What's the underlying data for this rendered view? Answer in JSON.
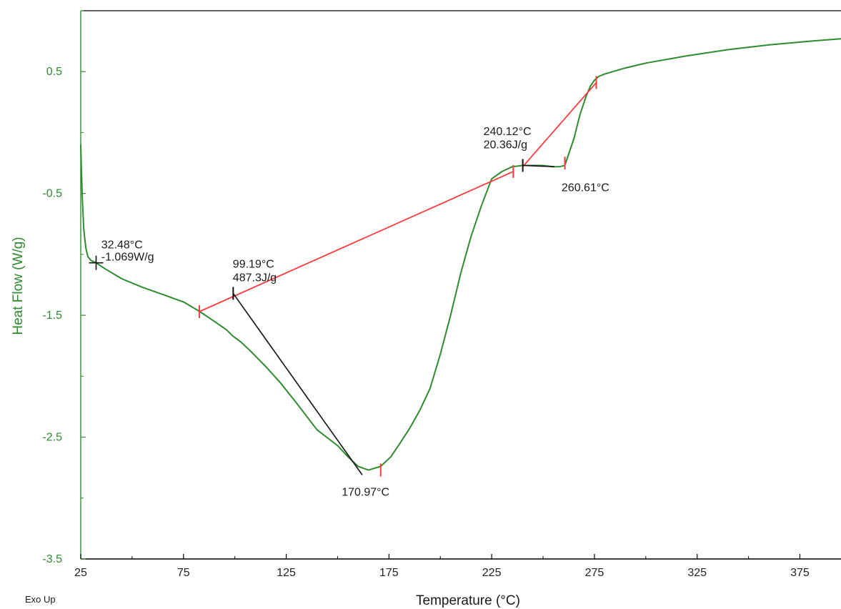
{
  "colors": {
    "curve": "#2e8b2e",
    "baseline": "#ff3b3b",
    "marker_black": "#111111",
    "axis_y": "#2e8b2e",
    "frame": "#000000"
  },
  "labels": {
    "exo_up": "Exo Up"
  },
  "chart_data": {
    "type": "line",
    "xlabel": "Temperature (°C)",
    "ylabel": "Heat Flow (W/g)",
    "xlim": [
      25,
      395
    ],
    "ylim": [
      -3.5,
      1.0
    ],
    "xticks": [
      25,
      75,
      125,
      175,
      225,
      275,
      325,
      375
    ],
    "yticks": [
      0.5,
      -0.5,
      -1.5,
      -2.5,
      -3.5
    ],
    "xtick_labels": [
      "25",
      "75",
      "125",
      "175",
      "225",
      "275",
      "325",
      "375"
    ],
    "ytick_labels": [
      "0.5",
      "-0.5",
      "-1.5",
      "-2.5",
      "-3.5"
    ],
    "grid": false,
    "series": [
      {
        "x": [
          25,
          25.3,
          25.8,
          26.5,
          27.5,
          28.5,
          30,
          32.5,
          37,
          45,
          55,
          65,
          75,
          83,
          90,
          96,
          99,
          103,
          108,
          115,
          122,
          130,
          140,
          150,
          155,
          160,
          165,
          171,
          176,
          180,
          185,
          190,
          192.5,
          195,
          200,
          205,
          210,
          215,
          220,
          225,
          230,
          235,
          240,
          245,
          250,
          255,
          258,
          260.6,
          262,
          265,
          268,
          271,
          273,
          275,
          277,
          280,
          290,
          300,
          320,
          340,
          360,
          380,
          395
        ],
        "y": [
          -0.1,
          -0.3,
          -0.55,
          -0.8,
          -0.95,
          -1.02,
          -1.05,
          -1.07,
          -1.12,
          -1.2,
          -1.27,
          -1.33,
          -1.39,
          -1.47,
          -1.55,
          -1.62,
          -1.67,
          -1.72,
          -1.8,
          -1.92,
          -2.05,
          -2.22,
          -2.44,
          -2.57,
          -2.66,
          -2.74,
          -2.77,
          -2.74,
          -2.66,
          -2.56,
          -2.43,
          -2.28,
          -2.19,
          -2.1,
          -1.82,
          -1.5,
          -1.15,
          -0.85,
          -0.6,
          -0.38,
          -0.32,
          -0.28,
          -0.27,
          -0.27,
          -0.27,
          -0.28,
          -0.28,
          -0.27,
          -0.2,
          -0.05,
          0.15,
          0.3,
          0.38,
          0.43,
          0.46,
          0.48,
          0.53,
          0.57,
          0.63,
          0.68,
          0.72,
          0.75,
          0.77
        ]
      }
    ],
    "baselines": [
      {
        "x": [
          82.7,
          235.5
        ],
        "y": [
          -1.47,
          -0.32
        ]
      },
      {
        "x": [
          240.12,
          275.9
        ],
        "y": [
          -0.28,
          0.41
        ]
      }
    ],
    "tangents": [
      {
        "x": [
          99.19,
          162.0
        ],
        "y": [
          -1.32,
          -2.81
        ]
      },
      {
        "x": [
          240.12,
          255.5
        ],
        "y": [
          -0.27,
          -0.28
        ]
      }
    ],
    "tick_marks": [
      {
        "x": 82.7,
        "y": -1.47,
        "color": "red"
      },
      {
        "x": 99.19,
        "y": -1.32,
        "color": "black"
      },
      {
        "x": 170.97,
        "y": -2.77,
        "color": "red"
      },
      {
        "x": 235.5,
        "y": -0.32,
        "color": "red"
      },
      {
        "x": 240.12,
        "y": -0.27,
        "color": "black"
      },
      {
        "x": 260.61,
        "y": -0.25,
        "color": "red"
      },
      {
        "x": 275.9,
        "y": 0.41,
        "color": "red"
      }
    ],
    "cross_marks": [
      {
        "x": 32.48,
        "y": -1.069
      }
    ],
    "annotations": [
      {
        "text": "32.48°C",
        "x": 35,
        "y": -0.95
      },
      {
        "text": "-1.069W/g",
        "x": 35,
        "y": -1.05
      },
      {
        "text": "99.19°C",
        "x": 99,
        "y": -1.11
      },
      {
        "text": "487.3J/g",
        "x": 99,
        "y": -1.22
      },
      {
        "text": "170.97°C",
        "x": 152,
        "y": -2.98
      },
      {
        "text": "240.12°C",
        "x": 221,
        "y": -0.02
      },
      {
        "text": "20.36J/g",
        "x": 221,
        "y": -0.13
      },
      {
        "text": "260.61°C",
        "x": 259,
        "y": -0.48
      }
    ]
  }
}
